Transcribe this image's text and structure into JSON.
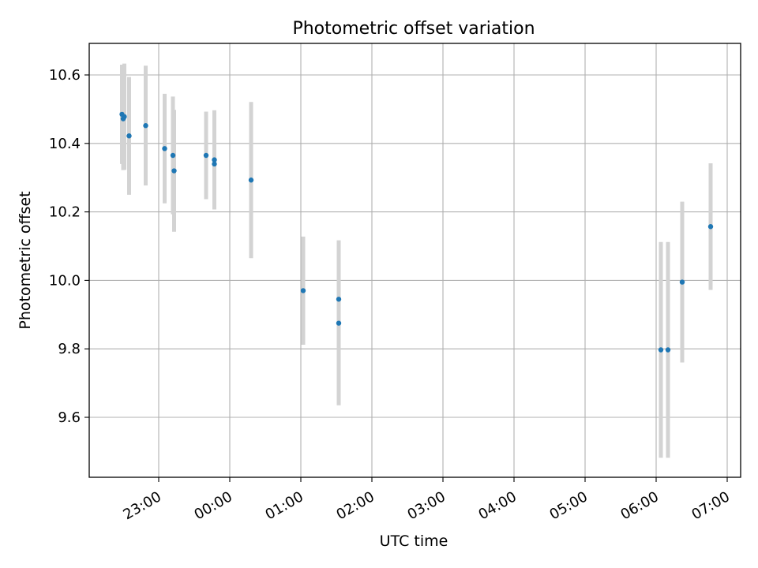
{
  "chart_data": {
    "type": "scatter",
    "title": "Photometric offset variation",
    "xlabel": "UTC time",
    "ylabel": "Photometric offset",
    "x_ticks": [
      "23:00",
      "00:00",
      "01:00",
      "02:00",
      "03:00",
      "04:00",
      "05:00",
      "06:00",
      "07:00"
    ],
    "y_ticks": [
      9.6,
      9.8,
      10.0,
      10.2,
      10.4,
      10.6
    ],
    "ylim": [
      9.42,
      10.69
    ],
    "grid": true,
    "colors": {
      "point": "#1f77b4",
      "errorbar": "#d3d3d3",
      "grid": "#b0b0b0"
    },
    "points": [
      {
        "t": "22:29",
        "y": 10.485,
        "err": 0.145
      },
      {
        "t": "22:30",
        "y": 10.472,
        "err": 0.15
      },
      {
        "t": "22:31",
        "y": 10.478,
        "err": 0.155
      },
      {
        "t": "22:35",
        "y": 10.422,
        "err": 0.172
      },
      {
        "t": "22:49",
        "y": 10.452,
        "err": 0.175
      },
      {
        "t": "23:05",
        "y": 10.385,
        "err": 0.16
      },
      {
        "t": "23:12",
        "y": 10.365,
        "err": 0.172
      },
      {
        "t": "23:13",
        "y": 10.32,
        "err": 0.178
      },
      {
        "t": "23:40",
        "y": 10.365,
        "err": 0.128
      },
      {
        "t": "23:47",
        "y": 10.352,
        "err": 0.145
      },
      {
        "t": "23:47",
        "y": 10.34,
        "err": 0.13
      },
      {
        "t": "00:18",
        "y": 10.293,
        "err": 0.228
      },
      {
        "t": "01:02",
        "y": 9.97,
        "err": 0.158
      },
      {
        "t": "01:32",
        "y": 9.945,
        "err": 0.172
      },
      {
        "t": "01:32",
        "y": 9.875,
        "err": 0.24
      },
      {
        "t": "06:04",
        "y": 9.797,
        "err": 0.315
      },
      {
        "t": "06:10",
        "y": 9.797,
        "err": 0.315
      },
      {
        "t": "06:22",
        "y": 9.995,
        "err": 0.235
      },
      {
        "t": "06:46",
        "y": 10.157,
        "err": 0.185
      }
    ]
  }
}
